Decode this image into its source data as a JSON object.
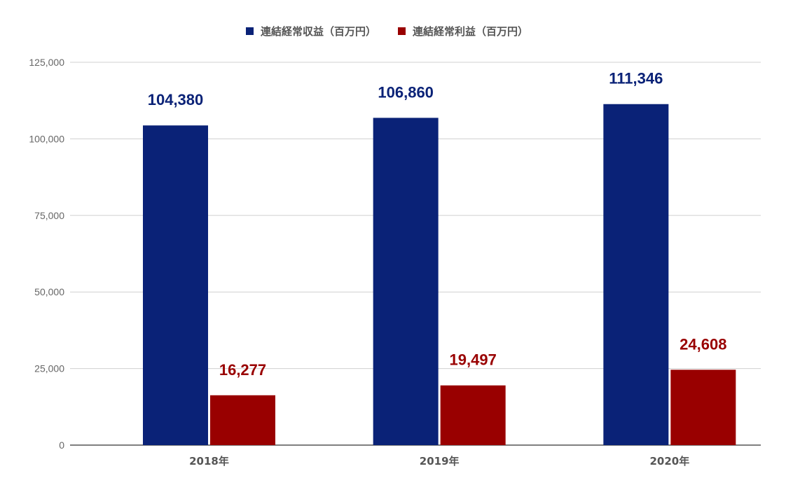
{
  "chart_data": {
    "type": "bar",
    "categories": [
      "2018年",
      "2019年",
      "2020年"
    ],
    "series": [
      {
        "name": "連結経常収益（百万円）",
        "color": "#0a2277",
        "values": [
          104380,
          106860,
          111346
        ],
        "labels": [
          "104,380",
          "106,860",
          "111,346"
        ]
      },
      {
        "name": "連結経常利益（百万円）",
        "color": "#990000",
        "values": [
          16277,
          19497,
          24608
        ],
        "labels": [
          "16,277",
          "19,497",
          "24,608"
        ]
      }
    ],
    "yticks": [
      0,
      25000,
      50000,
      75000,
      100000,
      125000
    ],
    "ytick_labels": [
      "0",
      "25,000",
      "50,000",
      "75,000",
      "100,000",
      "125,000"
    ],
    "ylim": [
      0,
      125000
    ],
    "grid": true,
    "legend_position": "top-center",
    "title": "",
    "xlabel": "",
    "ylabel": ""
  }
}
